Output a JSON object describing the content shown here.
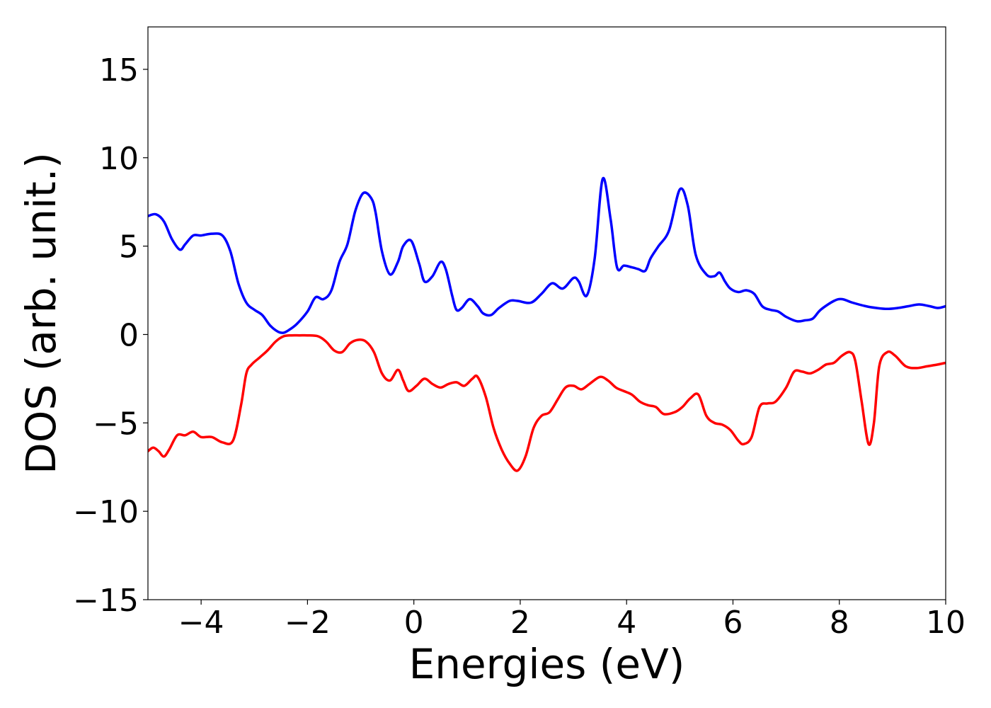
{
  "chart_data": {
    "type": "line",
    "title": "",
    "xlabel": "Energies (eV)",
    "ylabel": "DOS (arb. unit.)",
    "xlim": [
      -5,
      10
    ],
    "ylim": [
      -15,
      17.4
    ],
    "grid": false,
    "legend": "none",
    "xticks": [
      -4,
      -2,
      0,
      2,
      4,
      6,
      8,
      10
    ],
    "xtick_labels": [
      "−4",
      "−2",
      "0",
      "2",
      "4",
      "6",
      "8",
      "10"
    ],
    "yticks": [
      15,
      10,
      5,
      0,
      -5,
      -10,
      -15
    ],
    "ytick_labels": [
      "15",
      "10",
      "5",
      "0",
      "−5",
      "−10",
      "−15"
    ],
    "series": [
      {
        "color": "#0000ff",
        "x": [
          -5.0,
          -4.85,
          -4.7,
          -4.55,
          -4.4,
          -4.3,
          -4.15,
          -4.0,
          -3.8,
          -3.6,
          -3.45,
          -3.3,
          -3.15,
          -3.0,
          -2.85,
          -2.7,
          -2.55,
          -2.45,
          -2.35,
          -2.2,
          -2.0,
          -1.85,
          -1.7,
          -1.55,
          -1.4,
          -1.25,
          -1.1,
          -0.95,
          -0.8,
          -0.72,
          -0.6,
          -0.45,
          -0.3,
          -0.2,
          -0.05,
          0.1,
          0.2,
          0.35,
          0.5,
          0.6,
          0.72,
          0.8,
          0.9,
          1.05,
          1.2,
          1.3,
          1.45,
          1.6,
          1.8,
          1.95,
          2.2,
          2.4,
          2.6,
          2.8,
          3.0,
          3.1,
          3.25,
          3.4,
          3.55,
          3.7,
          3.82,
          3.95,
          4.1,
          4.22,
          4.35,
          4.45,
          4.6,
          4.8,
          5.0,
          5.15,
          5.3,
          5.5,
          5.65,
          5.75,
          5.85,
          5.95,
          6.1,
          6.25,
          6.4,
          6.55,
          6.7,
          6.85,
          7.0,
          7.2,
          7.35,
          7.5,
          7.65,
          7.9,
          8.05,
          8.25,
          8.5,
          8.7,
          8.9,
          9.1,
          9.3,
          9.5,
          9.7,
          9.85,
          10.0
        ],
        "y": [
          6.7,
          6.8,
          6.4,
          5.4,
          4.8,
          5.1,
          5.6,
          5.6,
          5.7,
          5.6,
          4.7,
          2.9,
          1.8,
          1.4,
          1.1,
          0.5,
          0.15,
          0.1,
          0.25,
          0.6,
          1.3,
          2.1,
          2.0,
          2.5,
          4.1,
          5.1,
          7.0,
          8.0,
          7.7,
          6.9,
          4.7,
          3.4,
          4.1,
          5.0,
          5.3,
          4.0,
          3.0,
          3.3,
          4.1,
          3.7,
          2.2,
          1.4,
          1.5,
          2.0,
          1.6,
          1.2,
          1.1,
          1.5,
          1.9,
          1.9,
          1.8,
          2.3,
          2.9,
          2.6,
          3.2,
          3.0,
          2.2,
          4.3,
          8.8,
          6.5,
          3.8,
          3.9,
          3.8,
          3.7,
          3.6,
          4.3,
          5.0,
          5.9,
          8.2,
          7.3,
          4.5,
          3.4,
          3.3,
          3.5,
          3.0,
          2.6,
          2.4,
          2.5,
          2.3,
          1.6,
          1.4,
          1.3,
          1.0,
          0.75,
          0.8,
          0.9,
          1.4,
          1.9,
          2.0,
          1.8,
          1.6,
          1.5,
          1.45,
          1.5,
          1.6,
          1.7,
          1.6,
          1.5,
          1.6
        ]
      },
      {
        "color": "#ff0000",
        "x": [
          -5.0,
          -4.9,
          -4.8,
          -4.7,
          -4.6,
          -4.45,
          -4.3,
          -4.15,
          -4.0,
          -3.8,
          -3.6,
          -3.4,
          -3.25,
          -3.15,
          -3.05,
          -2.9,
          -2.75,
          -2.6,
          -2.45,
          -2.3,
          -2.15,
          -2.0,
          -1.8,
          -1.65,
          -1.5,
          -1.35,
          -1.2,
          -1.05,
          -0.9,
          -0.75,
          -0.6,
          -0.45,
          -0.3,
          -0.2,
          -0.1,
          0.05,
          0.2,
          0.35,
          0.5,
          0.65,
          0.8,
          0.95,
          1.1,
          1.2,
          1.35,
          1.5,
          1.65,
          1.8,
          1.95,
          2.1,
          2.25,
          2.4,
          2.55,
          2.7,
          2.85,
          3.0,
          3.15,
          3.3,
          3.5,
          3.65,
          3.8,
          3.95,
          4.1,
          4.25,
          4.4,
          4.55,
          4.7,
          4.9,
          5.05,
          5.2,
          5.35,
          5.5,
          5.65,
          5.8,
          5.95,
          6.1,
          6.2,
          6.35,
          6.5,
          6.65,
          6.8,
          7.0,
          7.15,
          7.3,
          7.45,
          7.6,
          7.75,
          7.9,
          8.05,
          8.2,
          8.3,
          8.42,
          8.55,
          8.65,
          8.75,
          8.9,
          9.05,
          9.25,
          9.45,
          9.65,
          9.85,
          10.0
        ],
        "y": [
          -6.6,
          -6.4,
          -6.6,
          -6.9,
          -6.5,
          -5.7,
          -5.7,
          -5.5,
          -5.8,
          -5.8,
          -6.1,
          -6.0,
          -4.0,
          -2.2,
          -1.7,
          -1.3,
          -0.9,
          -0.4,
          -0.1,
          -0.05,
          -0.05,
          -0.05,
          -0.1,
          -0.4,
          -0.9,
          -1.0,
          -0.5,
          -0.3,
          -0.4,
          -1.0,
          -2.2,
          -2.6,
          -2.0,
          -2.6,
          -3.2,
          -2.9,
          -2.5,
          -2.8,
          -3.0,
          -2.8,
          -2.7,
          -2.9,
          -2.5,
          -2.4,
          -3.5,
          -5.3,
          -6.5,
          -7.3,
          -7.7,
          -6.9,
          -5.3,
          -4.6,
          -4.4,
          -3.7,
          -3.0,
          -2.9,
          -3.1,
          -2.8,
          -2.4,
          -2.6,
          -3.0,
          -3.2,
          -3.4,
          -3.8,
          -4.0,
          -4.1,
          -4.5,
          -4.4,
          -4.1,
          -3.6,
          -3.4,
          -4.6,
          -5.0,
          -5.1,
          -5.4,
          -6.0,
          -6.2,
          -5.8,
          -4.1,
          -3.9,
          -3.8,
          -3.0,
          -2.1,
          -2.1,
          -2.2,
          -2.0,
          -1.7,
          -1.6,
          -1.2,
          -1.0,
          -1.5,
          -3.8,
          -6.2,
          -5.0,
          -1.8,
          -1.0,
          -1.2,
          -1.8,
          -1.9,
          -1.8,
          -1.7,
          -1.6
        ]
      }
    ]
  }
}
